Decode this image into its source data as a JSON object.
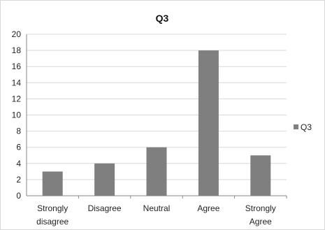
{
  "chart_data": {
    "type": "bar",
    "title": "Q3",
    "categories": [
      [
        "Strongly",
        "disagree"
      ],
      [
        "Disagree"
      ],
      [
        "Neutral"
      ],
      [
        "Agree"
      ],
      [
        "Strongly",
        "Agree"
      ]
    ],
    "series": [
      {
        "name": "Q3",
        "values": [
          3,
          4,
          6,
          18,
          5
        ],
        "color": "#7f7f7f"
      }
    ],
    "ylim": [
      0,
      20
    ],
    "yticks": [
      0,
      2,
      4,
      6,
      8,
      10,
      12,
      14,
      16,
      18,
      20
    ],
    "grid": true,
    "legend_position": "right",
    "xlabel": "",
    "ylabel": ""
  }
}
